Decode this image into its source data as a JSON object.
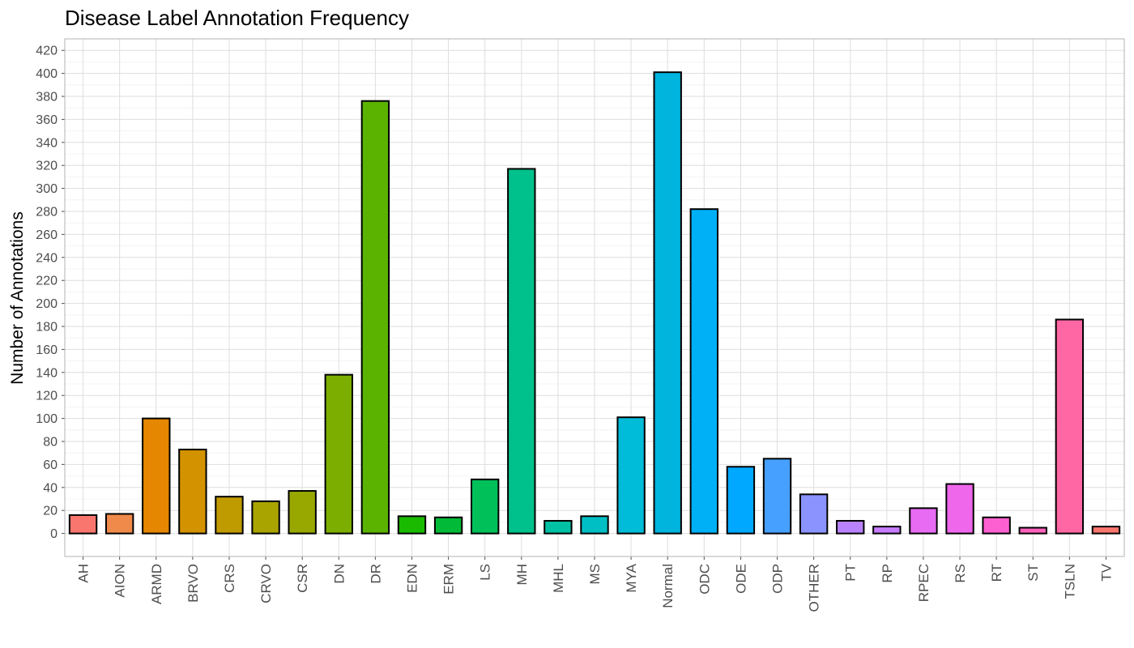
{
  "chart_data": {
    "type": "bar",
    "title": "Disease Label Annotation Frequency",
    "xlabel": "",
    "ylabel": "Number of Annotations",
    "ylim": [
      -20,
      430
    ],
    "y_ticks": [
      0,
      20,
      40,
      60,
      80,
      100,
      120,
      140,
      160,
      180,
      200,
      220,
      240,
      260,
      280,
      300,
      320,
      340,
      360,
      380,
      400,
      420
    ],
    "grid": true,
    "legend": "none",
    "categories": [
      "AH",
      "AION",
      "ARMD",
      "BRVO",
      "CRS",
      "CRVO",
      "CSR",
      "DN",
      "DR",
      "EDN",
      "ERM",
      "LS",
      "MH",
      "MHL",
      "MS",
      "MYA",
      "Normal",
      "ODC",
      "ODE",
      "ODP",
      "OTHER",
      "PT",
      "RP",
      "RPEC",
      "RS",
      "RT",
      "ST",
      "TSLN",
      "TV"
    ],
    "values": [
      16,
      17,
      100,
      73,
      32,
      28,
      37,
      138,
      376,
      15,
      14,
      47,
      317,
      11,
      15,
      101,
      401,
      282,
      58,
      65,
      34,
      11,
      6,
      22,
      43,
      14,
      5,
      186,
      6
    ],
    "colors": [
      "#F8766D",
      "#F08A4B",
      "#E58700",
      "#D39200",
      "#C09B00",
      "#A9A400",
      "#99A800",
      "#7CAE00",
      "#5BB300",
      "#1ABA00",
      "#00BA38",
      "#00C05A",
      "#00C08B",
      "#00C1A3",
      "#00BFC4",
      "#00BCD8",
      "#00B4DE",
      "#00B0F6",
      "#00A9FF",
      "#46A0FF",
      "#8B93FF",
      "#B983FF",
      "#C77CFF",
      "#E76BF3",
      "#EF67EB",
      "#FD61D1",
      "#FF62BC",
      "#FF67A4",
      "#F8766D"
    ]
  }
}
